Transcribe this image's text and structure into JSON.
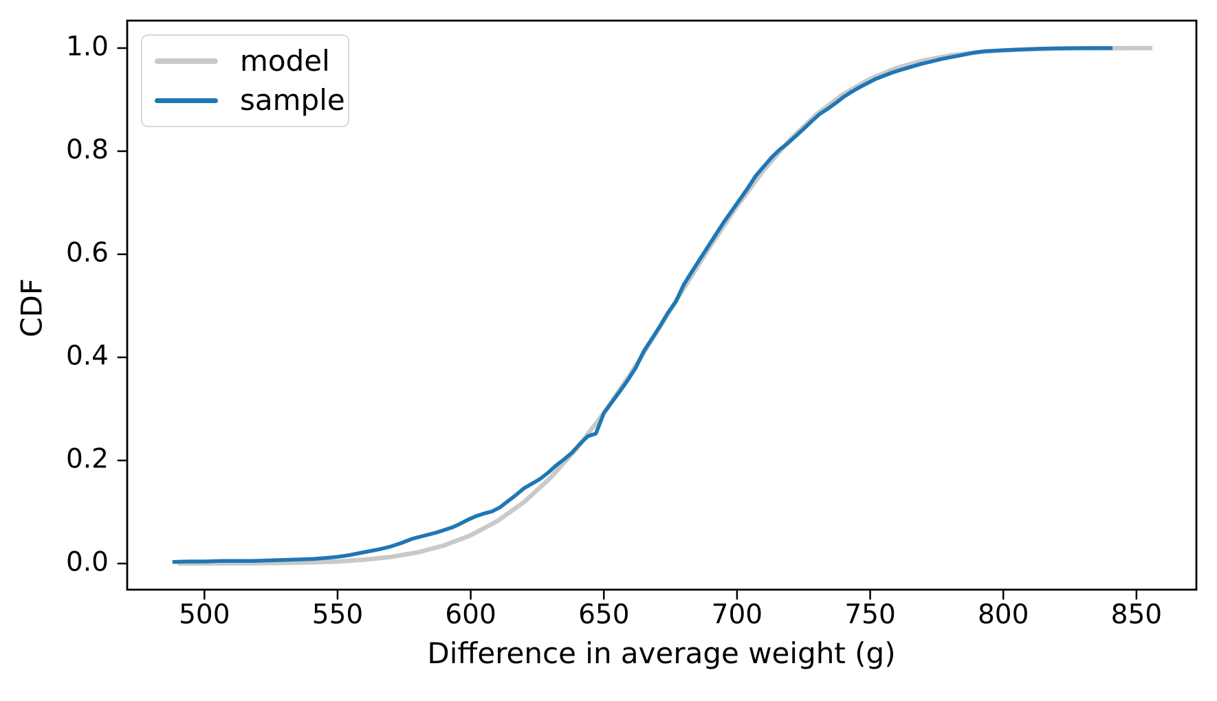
{
  "chart_data": {
    "type": "line",
    "title": "",
    "xlabel": "Difference in average weight (g)",
    "ylabel": "CDF",
    "xlim": [
      471.0,
      872.5
    ],
    "ylim": [
      -0.0507,
      1.0533
    ],
    "xticks": [
      500,
      550,
      600,
      650,
      700,
      750,
      800,
      850
    ],
    "yticks": [
      0.0,
      0.2,
      0.4,
      0.6,
      0.8,
      1.0
    ],
    "ytick_labels": [
      "0.0",
      "0.2",
      "0.4",
      "0.6",
      "0.8",
      "1.0"
    ],
    "grid": false,
    "background": "#ffffff",
    "axis_color": "#000000",
    "legend": {
      "position": "upper-left",
      "entries": [
        {
          "label": "model",
          "color": "#c9c9c9"
        },
        {
          "label": "sample",
          "color": "#1f77b4"
        }
      ]
    },
    "series": [
      {
        "name": "model",
        "color": "#c9c9c9",
        "linewidth": 6.5,
        "points": [
          [
            490,
            0.0001
          ],
          [
            500,
            0.0001
          ],
          [
            510,
            0.0002
          ],
          [
            520,
            0.0005
          ],
          [
            530,
            0.0011
          ],
          [
            540,
            0.0021
          ],
          [
            550,
            0.004
          ],
          [
            560,
            0.0073
          ],
          [
            570,
            0.0128
          ],
          [
            580,
            0.0216
          ],
          [
            590,
            0.0351
          ],
          [
            600,
            0.0548
          ],
          [
            610,
            0.0824
          ],
          [
            620,
            0.1192
          ],
          [
            630,
            0.1665
          ],
          [
            640,
            0.2242
          ],
          [
            650,
            0.2921
          ],
          [
            660,
            0.368
          ],
          [
            670,
            0.4499
          ],
          [
            680,
            0.5335
          ],
          [
            690,
            0.616
          ],
          [
            700,
            0.6932
          ],
          [
            710,
            0.763
          ],
          [
            720,
            0.8228
          ],
          [
            730,
            0.8722
          ],
          [
            740,
            0.911
          ],
          [
            750,
            0.9404
          ],
          [
            760,
            0.9615
          ],
          [
            770,
            0.9761
          ],
          [
            780,
            0.9857
          ],
          [
            790,
            0.9918
          ],
          [
            800,
            0.9955
          ],
          [
            810,
            0.9976
          ],
          [
            820,
            0.9988
          ],
          [
            830,
            0.9994
          ],
          [
            840,
            0.9997
          ],
          [
            848,
            0.9999
          ],
          [
            856,
            0.9999
          ]
        ]
      },
      {
        "name": "sample",
        "color": "#1f77b4",
        "linewidth": 5.5,
        "points": [
          [
            488,
            0.003
          ],
          [
            494,
            0.004
          ],
          [
            500,
            0.004
          ],
          [
            506,
            0.005
          ],
          [
            512,
            0.005
          ],
          [
            518,
            0.005
          ],
          [
            524,
            0.006
          ],
          [
            530,
            0.007
          ],
          [
            536,
            0.008
          ],
          [
            541,
            0.009
          ],
          [
            546,
            0.011
          ],
          [
            550,
            0.013
          ],
          [
            554,
            0.016
          ],
          [
            558,
            0.02
          ],
          [
            562,
            0.024
          ],
          [
            566,
            0.028
          ],
          [
            570,
            0.033
          ],
          [
            574,
            0.04
          ],
          [
            578,
            0.048
          ],
          [
            581,
            0.052
          ],
          [
            584,
            0.056
          ],
          [
            587,
            0.06
          ],
          [
            590,
            0.065
          ],
          [
            593,
            0.07
          ],
          [
            596,
            0.077
          ],
          [
            599,
            0.085
          ],
          [
            602,
            0.092
          ],
          [
            605,
            0.097
          ],
          [
            608,
            0.101
          ],
          [
            611,
            0.109
          ],
          [
            614,
            0.121
          ],
          [
            617,
            0.133
          ],
          [
            620,
            0.146
          ],
          [
            623,
            0.155
          ],
          [
            626,
            0.164
          ],
          [
            629,
            0.176
          ],
          [
            632,
            0.19
          ],
          [
            635,
            0.202
          ],
          [
            638,
            0.215
          ],
          [
            641,
            0.232
          ],
          [
            644,
            0.247
          ],
          [
            647,
            0.252
          ],
          [
            650,
            0.292
          ],
          [
            653,
            0.313
          ],
          [
            656,
            0.334
          ],
          [
            659,
            0.356
          ],
          [
            662,
            0.38
          ],
          [
            665,
            0.412
          ],
          [
            668,
            0.436
          ],
          [
            671,
            0.46
          ],
          [
            674,
            0.486
          ],
          [
            677,
            0.508
          ],
          [
            680,
            0.541
          ],
          [
            683,
            0.566
          ],
          [
            686,
            0.59
          ],
          [
            689,
            0.614
          ],
          [
            692,
            0.638
          ],
          [
            695,
            0.662
          ],
          [
            698,
            0.684
          ],
          [
            701,
            0.706
          ],
          [
            704,
            0.728
          ],
          [
            707,
            0.752
          ],
          [
            710,
            0.77
          ],
          [
            713,
            0.788
          ],
          [
            716,
            0.803
          ],
          [
            719,
            0.815
          ],
          [
            722,
            0.829
          ],
          [
            725,
            0.843
          ],
          [
            728,
            0.858
          ],
          [
            731,
            0.872
          ],
          [
            734,
            0.882
          ],
          [
            737,
            0.893
          ],
          [
            740,
            0.905
          ],
          [
            743,
            0.915
          ],
          [
            746,
            0.924
          ],
          [
            749,
            0.932
          ],
          [
            752,
            0.94
          ],
          [
            755,
            0.946
          ],
          [
            758,
            0.952
          ],
          [
            761,
            0.957
          ],
          [
            765,
            0.963
          ],
          [
            769,
            0.969
          ],
          [
            773,
            0.974
          ],
          [
            777,
            0.979
          ],
          [
            781,
            0.983
          ],
          [
            785,
            0.987
          ],
          [
            789,
            0.991
          ],
          [
            793,
            0.994
          ],
          [
            797,
            0.995
          ],
          [
            801,
            0.996
          ],
          [
            805,
            0.997
          ],
          [
            810,
            0.998
          ],
          [
            815,
            0.999
          ],
          [
            822,
            0.9995
          ],
          [
            830,
            1.0
          ],
          [
            841,
            1.0
          ]
        ]
      }
    ]
  }
}
